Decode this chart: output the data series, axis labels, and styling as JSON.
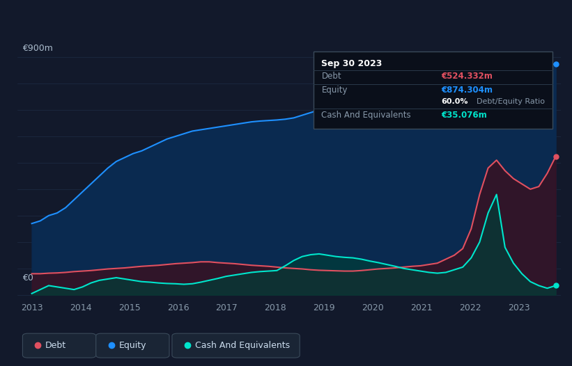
{
  "bg_color": "#12192b",
  "plot_bg_color": "#12192b",
  "grid_color": "#1e2d45",
  "title_label": "€900m",
  "zero_label": "€0",
  "x_ticks": [
    2013,
    2014,
    2015,
    2016,
    2017,
    2018,
    2019,
    2020,
    2021,
    2022,
    2023
  ],
  "equity_color": "#1e90ff",
  "equity_fill_color": "#0a2a50",
  "debt_color": "#e05060",
  "debt_fill_color": "#3a1020",
  "cash_color": "#00e5cc",
  "cash_fill_color": "#003d38",
  "legend_box_color": "#1a2535",
  "tooltip_bg": "#0a0f1a",
  "tooltip_border": "#2a3545",
  "equity_data": [
    270,
    280,
    300,
    310,
    330,
    360,
    390,
    420,
    450,
    480,
    505,
    520,
    535,
    545,
    560,
    575,
    590,
    600,
    610,
    620,
    625,
    630,
    635,
    640,
    645,
    650,
    655,
    658,
    660,
    662,
    665,
    670,
    680,
    690,
    700,
    710,
    720,
    725,
    730,
    740,
    745,
    750,
    755,
    758,
    760,
    765,
    770,
    778,
    785,
    795,
    800,
    810,
    818,
    825,
    832,
    840,
    848,
    855,
    860,
    865,
    870,
    872,
    874
  ],
  "debt_data": [
    80,
    80,
    82,
    83,
    85,
    88,
    90,
    92,
    95,
    98,
    100,
    102,
    105,
    108,
    110,
    112,
    115,
    118,
    120,
    122,
    125,
    125,
    122,
    120,
    118,
    115,
    112,
    110,
    108,
    105,
    102,
    100,
    98,
    95,
    93,
    92,
    91,
    90,
    90,
    92,
    95,
    98,
    100,
    102,
    105,
    108,
    110,
    115,
    120,
    135,
    150,
    175,
    250,
    380,
    480,
    510,
    470,
    440,
    420,
    400,
    410,
    460,
    524
  ],
  "cash_data": [
    5,
    20,
    35,
    30,
    25,
    20,
    30,
    45,
    55,
    60,
    65,
    60,
    55,
    50,
    48,
    45,
    43,
    42,
    40,
    42,
    48,
    55,
    62,
    70,
    75,
    80,
    85,
    88,
    90,
    92,
    110,
    130,
    145,
    152,
    155,
    150,
    145,
    142,
    140,
    135,
    128,
    122,
    115,
    108,
    100,
    95,
    90,
    85,
    82,
    85,
    95,
    105,
    140,
    200,
    310,
    380,
    180,
    120,
    80,
    50,
    35,
    25,
    35
  ],
  "num_points": 63,
  "year_start": 2013.0,
  "year_end": 2023.75,
  "y_max": 950,
  "tooltip": {
    "date": "Sep 30 2023",
    "debt_label": "Debt",
    "debt_value": "€524.332m",
    "equity_label": "Equity",
    "equity_value": "€874.304m",
    "ratio_value": "60.0%",
    "ratio_label": "Debt/Equity Ratio",
    "cash_label": "Cash And Equivalents",
    "cash_value": "€35.076m"
  }
}
